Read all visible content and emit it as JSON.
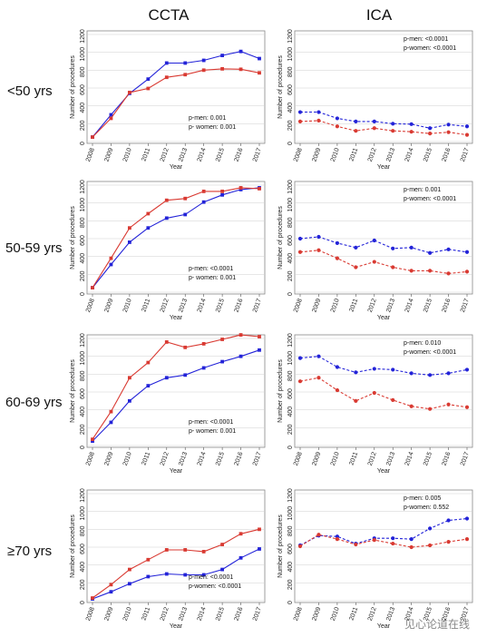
{
  "columns": [
    "CCTA",
    "ICA"
  ],
  "rows": [
    "<50 yrs",
    "50-59 yrs",
    "60-69 yrs",
    "≥70 yrs"
  ],
  "watermark": "见心论道在线",
  "colors": {
    "men": "#2323d8",
    "women": "#d93a32"
  },
  "chart_data": [
    {
      "type": "line",
      "panel": "CCTA <50 yrs",
      "xlabel": "Year",
      "ylabel": "Number of procedures",
      "x": [
        2008,
        2009,
        2010,
        2011,
        2012,
        2013,
        2014,
        2015,
        2016,
        2017
      ],
      "ylim": [
        0,
        1200
      ],
      "yticks": [
        0,
        200,
        400,
        600,
        800,
        1000,
        1200
      ],
      "dashed": false,
      "series": [
        {
          "values": [
            50,
            300,
            540,
            700,
            880,
            880,
            910,
            965,
            1010,
            930
          ]
        },
        {
          "values": [
            50,
            260,
            550,
            595,
            720,
            750,
            800,
            815,
            810,
            770
          ]
        }
      ],
      "annotation": [
        "p-men: 0.001",
        "p- women: 0.001"
      ]
    },
    {
      "type": "line",
      "panel": "ICA <50 yrs",
      "xlabel": "Year",
      "ylabel": "Number of procedures",
      "x": [
        2008,
        2009,
        2010,
        2011,
        2012,
        2013,
        2014,
        2015,
        2016,
        2017
      ],
      "ylim": [
        0,
        1200
      ],
      "yticks": [
        0,
        200,
        400,
        600,
        800,
        1000,
        1200
      ],
      "dashed": true,
      "series": [
        {
          "values": [
            330,
            330,
            260,
            225,
            225,
            200,
            195,
            150,
            190,
            170
          ]
        },
        {
          "values": [
            225,
            235,
            170,
            120,
            150,
            120,
            110,
            90,
            105,
            75
          ]
        }
      ],
      "annotation": [
        "p-men: <0.0001",
        "p-women: <0.0001"
      ]
    },
    {
      "type": "line",
      "panel": "CCTA 50-59 yrs",
      "xlabel": "Year",
      "ylabel": "Number of procedures",
      "x": [
        2008,
        2009,
        2010,
        2011,
        2012,
        2013,
        2014,
        2015,
        2016,
        2017
      ],
      "ylim": [
        0,
        1200
      ],
      "yticks": [
        0,
        200,
        400,
        600,
        800,
        1000,
        1200
      ],
      "dashed": false,
      "series": [
        {
          "values": [
            50,
            310,
            560,
            720,
            830,
            870,
            1010,
            1090,
            1150,
            1170
          ]
        },
        {
          "values": [
            50,
            380,
            720,
            880,
            1030,
            1050,
            1130,
            1130,
            1170,
            1160
          ]
        }
      ],
      "annotation": [
        "p-men: <0.0001",
        "p- women: 0.001"
      ]
    },
    {
      "type": "line",
      "panel": "ICA 50-59 yrs",
      "xlabel": "Year",
      "ylabel": "Number of procedures",
      "x": [
        2008,
        2009,
        2010,
        2011,
        2012,
        2013,
        2014,
        2015,
        2016,
        2017
      ],
      "ylim": [
        0,
        1200
      ],
      "yticks": [
        0,
        200,
        400,
        600,
        800,
        1000,
        1200
      ],
      "dashed": true,
      "series": [
        {
          "values": [
            600,
            620,
            550,
            500,
            580,
            490,
            500,
            440,
            480,
            450
          ]
        },
        {
          "values": [
            450,
            470,
            380,
            280,
            340,
            280,
            240,
            240,
            210,
            230
          ]
        }
      ],
      "annotation": [
        "p-men: 0.001",
        "p-women: <0.0001"
      ]
    },
    {
      "type": "line",
      "panel": "CCTA 60-69 yrs",
      "xlabel": "Year",
      "ylabel": "Number of procedures",
      "x": [
        2008,
        2009,
        2010,
        2011,
        2012,
        2013,
        2014,
        2015,
        2016,
        2017
      ],
      "ylim": [
        0,
        1200
      ],
      "yticks": [
        0,
        200,
        400,
        600,
        800,
        1000,
        1200
      ],
      "dashed": false,
      "series": [
        {
          "values": [
            50,
            260,
            500,
            670,
            760,
            790,
            870,
            940,
            1000,
            1070
          ]
        },
        {
          "values": [
            70,
            380,
            760,
            930,
            1160,
            1100,
            1140,
            1190,
            1240,
            1220
          ]
        }
      ],
      "annotation": [
        "p-men: <0.0001",
        "p- women: 0.001"
      ]
    },
    {
      "type": "line",
      "panel": "ICA 60-69 yrs",
      "xlabel": "Year",
      "ylabel": "Number of procedures",
      "x": [
        2008,
        2009,
        2010,
        2011,
        2012,
        2013,
        2014,
        2015,
        2016,
        2017
      ],
      "ylim": [
        0,
        1200
      ],
      "yticks": [
        0,
        200,
        400,
        600,
        800,
        1000,
        1200
      ],
      "dashed": true,
      "series": [
        {
          "values": [
            980,
            1000,
            880,
            820,
            860,
            850,
            810,
            790,
            810,
            850
          ]
        },
        {
          "values": [
            720,
            760,
            620,
            500,
            590,
            510,
            440,
            410,
            460,
            430
          ]
        }
      ],
      "annotation": [
        "p-men: 0.010",
        "p-women: <0.0001"
      ]
    },
    {
      "type": "line",
      "panel": "CCTA ≥70 yrs",
      "xlabel": "Year",
      "ylabel": "Number of procedures",
      "x": [
        2008,
        2009,
        2010,
        2011,
        2012,
        2013,
        2014,
        2015,
        2016,
        2017
      ],
      "ylim": [
        0,
        1200
      ],
      "yticks": [
        0,
        200,
        400,
        600,
        800,
        1000,
        1200
      ],
      "dashed": false,
      "series": [
        {
          "values": [
            20,
            100,
            190,
            270,
            300,
            290,
            290,
            350,
            480,
            580
          ]
        },
        {
          "values": [
            30,
            180,
            350,
            460,
            570,
            570,
            550,
            630,
            750,
            800
          ]
        }
      ],
      "annotation": [
        "p-men: <0.0001",
        "p-women: <0.0001"
      ]
    },
    {
      "type": "line",
      "panel": "ICA ≥70 yrs",
      "xlabel": "Year",
      "ylabel": "Number of procedures",
      "x": [
        2008,
        2009,
        2010,
        2011,
        2012,
        2013,
        2014,
        2015,
        2016,
        2017
      ],
      "ylim": [
        0,
        1200
      ],
      "yticks": [
        0,
        200,
        400,
        600,
        800,
        1000,
        1200
      ],
      "dashed": true,
      "series": [
        {
          "values": [
            620,
            730,
            720,
            640,
            700,
            700,
            690,
            810,
            900,
            920
          ]
        },
        {
          "values": [
            610,
            740,
            690,
            630,
            680,
            640,
            600,
            620,
            660,
            690
          ]
        }
      ],
      "annotation": [
        "p-men: 0.005",
        "p-women: 0.552"
      ]
    }
  ]
}
